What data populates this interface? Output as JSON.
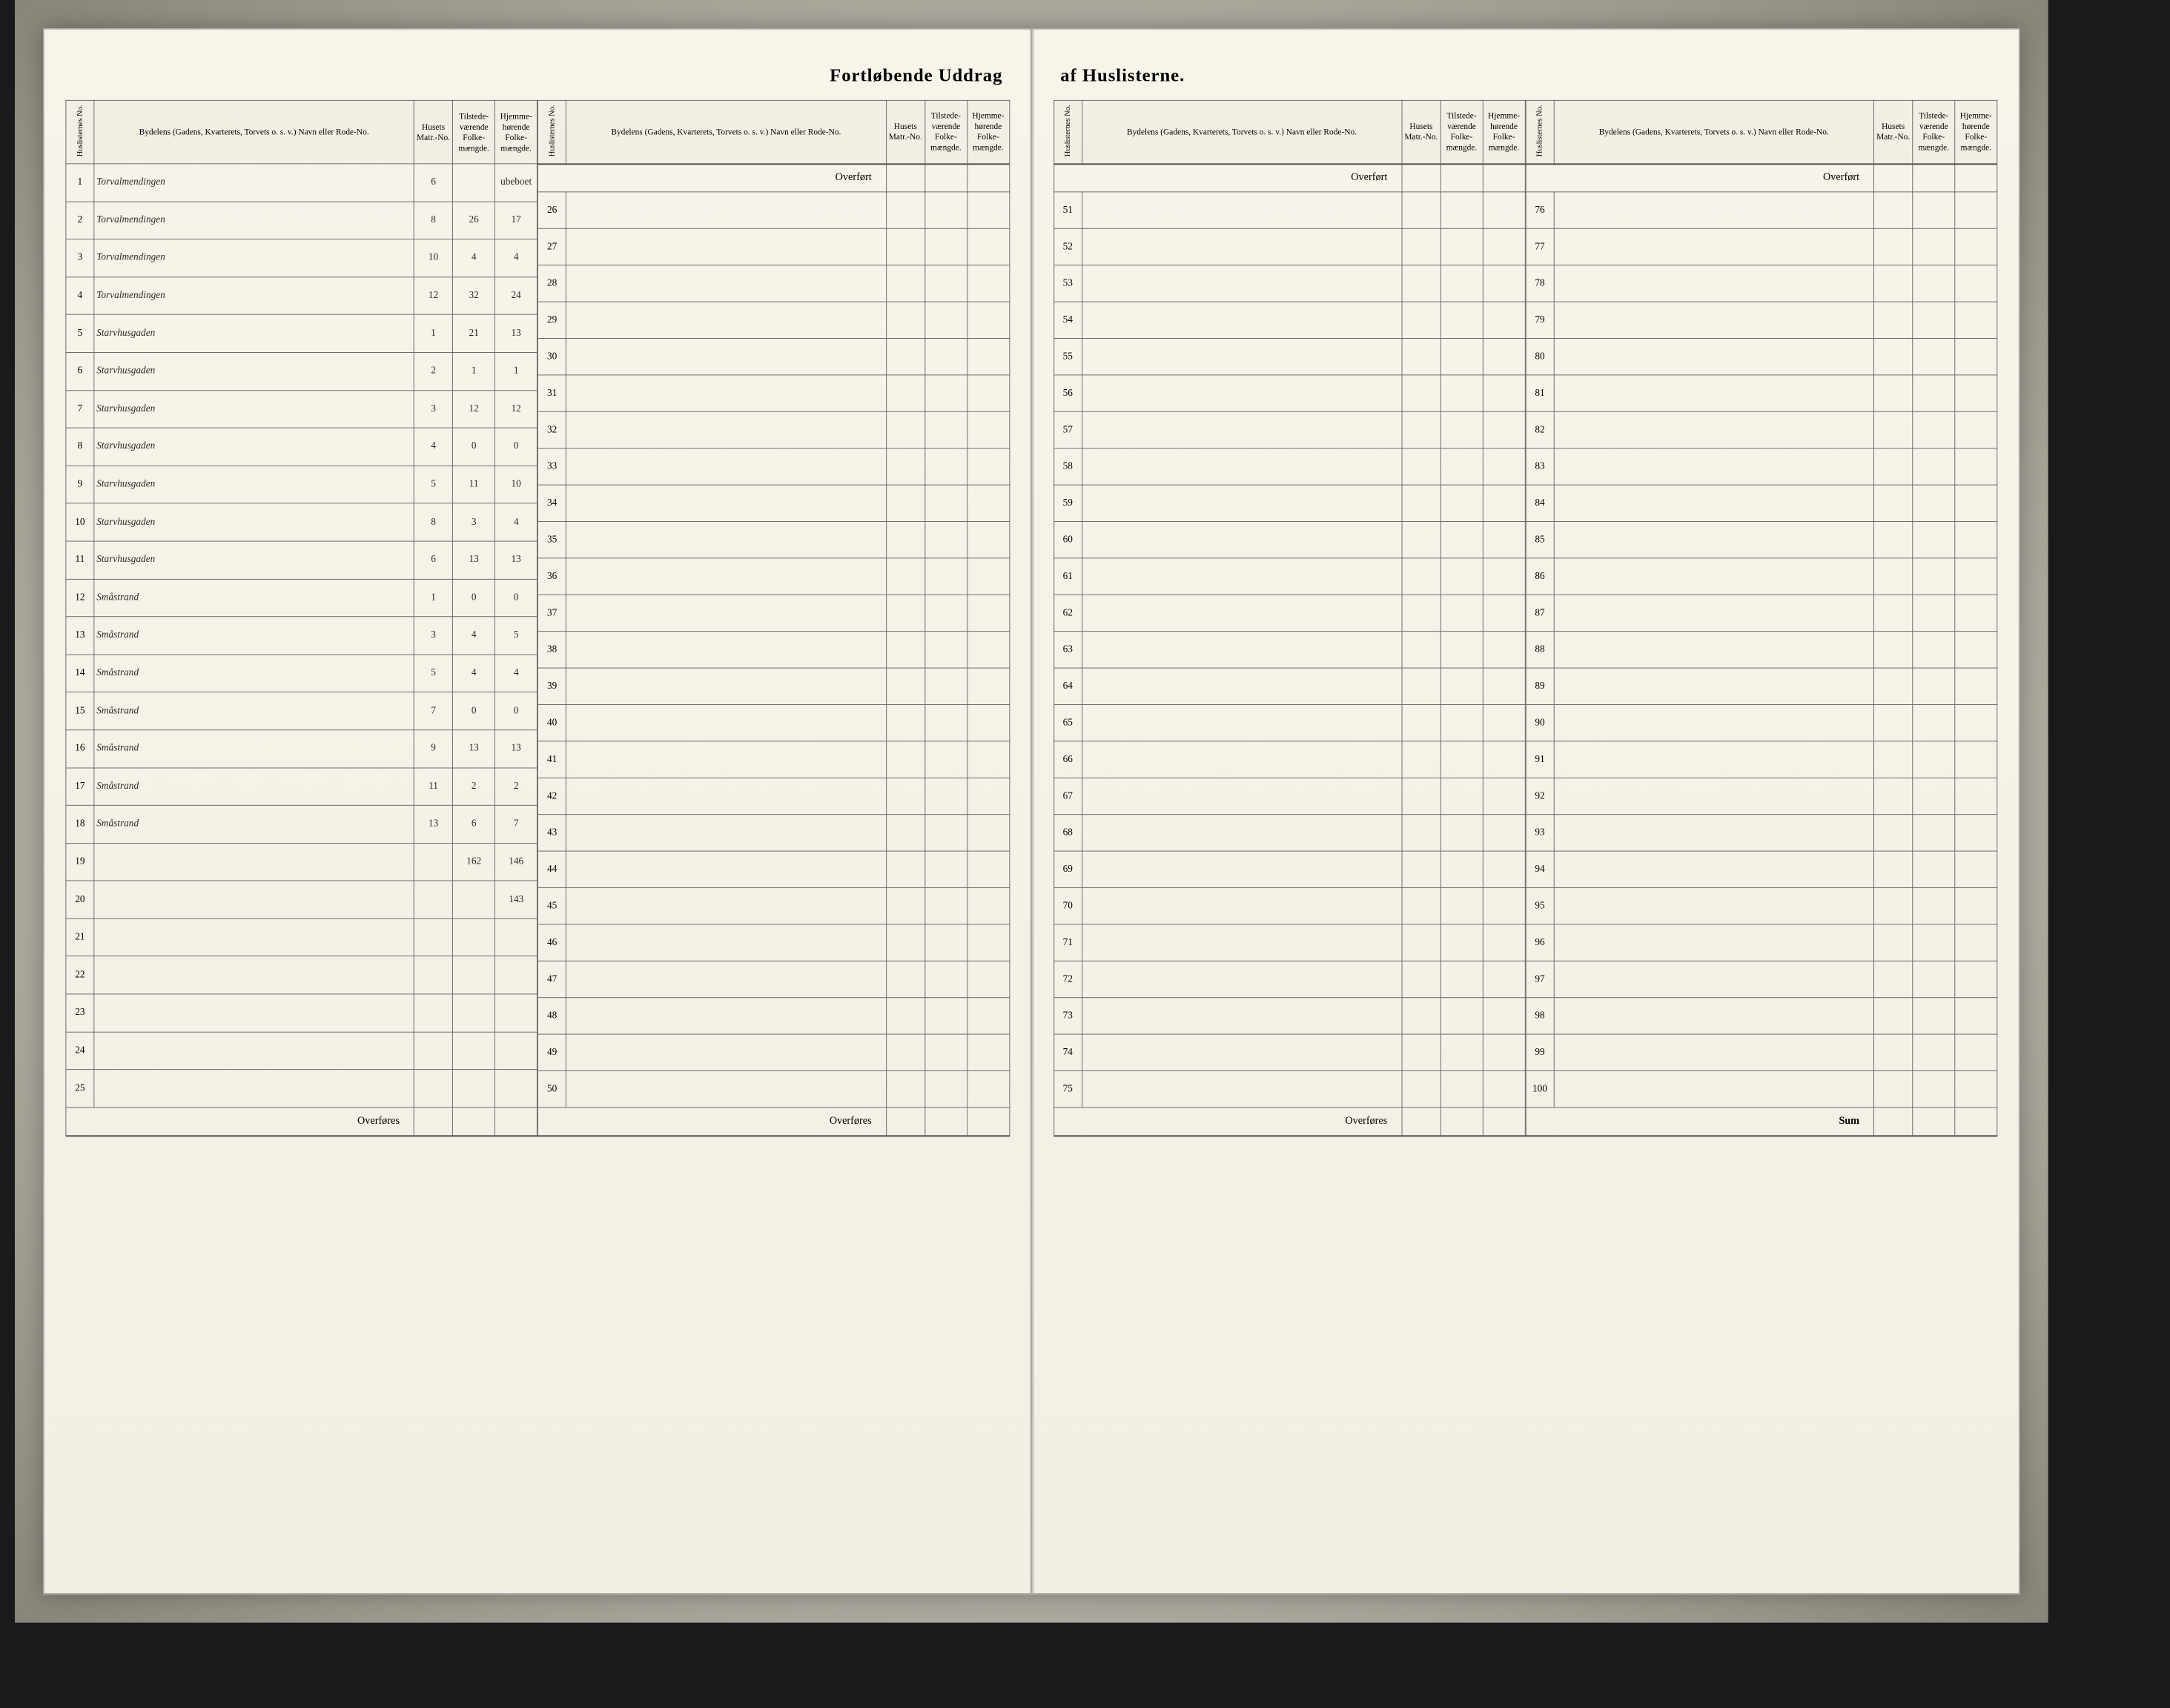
{
  "title_left": "Fortløbende Uddrag",
  "title_right": "af Huslisterne.",
  "headers": {
    "huslisternes_no": "Huslisternes No.",
    "bydelens": "Bydelens (Gadens, Kvarterets, Torvets o. s. v.) Navn eller Rode-No.",
    "husets_matr": "Husets Matr.-No.",
    "tilstede": "Tilstede-værende Folke-mængde.",
    "hjemme": "Hjemme-hørende Folke-mængde."
  },
  "labels": {
    "overfort": "Overført",
    "overfores": "Overføres",
    "sum": "Sum"
  },
  "rows_left_a": [
    {
      "no": "1",
      "name": "Torvalmendingen",
      "matr": "6",
      "f1": "",
      "f2": "ubeboet"
    },
    {
      "no": "2",
      "name": "Torvalmendingen",
      "matr": "8",
      "f1": "26",
      "f2": "17"
    },
    {
      "no": "3",
      "name": "Torvalmendingen",
      "matr": "10",
      "f1": "4",
      "f2": "4"
    },
    {
      "no": "4",
      "name": "Torvalmendingen",
      "matr": "12",
      "f1": "32",
      "f2": "24"
    },
    {
      "no": "5",
      "name": "Starvhusgaden",
      "matr": "1",
      "f1": "21",
      "f2": "13"
    },
    {
      "no": "6",
      "name": "Starvhusgaden",
      "matr": "2",
      "f1": "1",
      "f2": "1"
    },
    {
      "no": "7",
      "name": "Starvhusgaden",
      "matr": "3",
      "f1": "12",
      "f2": "12"
    },
    {
      "no": "8",
      "name": "Starvhusgaden",
      "matr": "4",
      "f1": "0",
      "f2": "0"
    },
    {
      "no": "9",
      "name": "Starvhusgaden",
      "matr": "5",
      "f1": "11",
      "f2": "10"
    },
    {
      "no": "10",
      "name": "Starvhusgaden",
      "matr": "8",
      "f1": "3",
      "f2": "4"
    },
    {
      "no": "11",
      "name": "Starvhusgaden",
      "matr": "6",
      "f1": "13",
      "f2": "13"
    },
    {
      "no": "12",
      "name": "Småstrand",
      "matr": "1",
      "f1": "0",
      "f2": "0"
    },
    {
      "no": "13",
      "name": "Småstrand",
      "matr": "3",
      "f1": "4",
      "f2": "5"
    },
    {
      "no": "14",
      "name": "Småstrand",
      "matr": "5",
      "f1": "4",
      "f2": "4"
    },
    {
      "no": "15",
      "name": "Småstrand",
      "matr": "7",
      "f1": "0",
      "f2": "0"
    },
    {
      "no": "16",
      "name": "Småstrand",
      "matr": "9",
      "f1": "13",
      "f2": "13"
    },
    {
      "no": "17",
      "name": "Småstrand",
      "matr": "11",
      "f1": "2",
      "f2": "2"
    },
    {
      "no": "18",
      "name": "Småstrand",
      "matr": "13",
      "f1": "6",
      "f2": "7"
    },
    {
      "no": "19",
      "name": "",
      "matr": "",
      "f1": "162",
      "f2": "146"
    },
    {
      "no": "20",
      "name": "",
      "matr": "",
      "f1": "",
      "f2": "143"
    },
    {
      "no": "21",
      "name": "",
      "matr": "",
      "f1": "",
      "f2": ""
    },
    {
      "no": "22",
      "name": "",
      "matr": "",
      "f1": "",
      "f2": ""
    },
    {
      "no": "23",
      "name": "",
      "matr": "",
      "f1": "",
      "f2": ""
    },
    {
      "no": "24",
      "name": "",
      "matr": "",
      "f1": "",
      "f2": ""
    },
    {
      "no": "25",
      "name": "",
      "matr": "",
      "f1": "",
      "f2": ""
    }
  ],
  "rows_left_b_start": 26,
  "rows_left_b_end": 50,
  "rows_right_a_start": 51,
  "rows_right_a_end": 75,
  "rows_right_b_start": 76,
  "rows_right_b_end": 100,
  "colors": {
    "paper": "#f5f2e8",
    "ink": "#2a2a2a",
    "border": "#666666",
    "frame_bg": "#c8c4ba"
  }
}
